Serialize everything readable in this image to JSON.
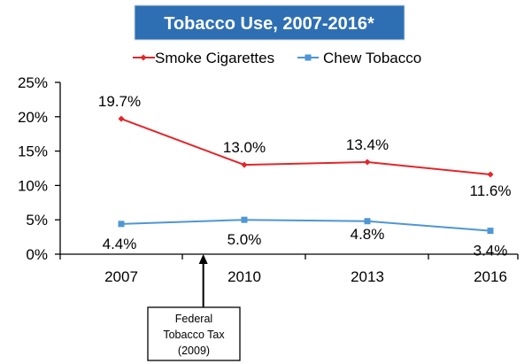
{
  "chart_data": {
    "type": "line",
    "title": "Tobacco Use, 2007-2016*",
    "categories": [
      "2007",
      "2010",
      "2013",
      "2016"
    ],
    "series": [
      {
        "name": "Smoke Cigarettes",
        "color": "#e3262a",
        "marker": "diamond",
        "values": [
          19.7,
          13.0,
          13.4,
          11.6
        ],
        "labels": [
          "19.7%",
          "13.0%",
          "13.4%",
          "11.6%"
        ]
      },
      {
        "name": "Chew Tobacco",
        "color": "#4f96d4",
        "marker": "square",
        "values": [
          4.4,
          5.0,
          4.8,
          3.4
        ],
        "labels": [
          "4.4%",
          "5.0%",
          "4.8%",
          "3.4%"
        ]
      }
    ],
    "y_ticks": [
      "0%",
      "5%",
      "10%",
      "15%",
      "20%",
      "25%"
    ],
    "ylim": [
      0,
      25
    ],
    "grid": false,
    "legend_position": "top",
    "annotation": {
      "lines": [
        "Federal",
        "Tobacco Tax",
        "(2009)"
      ],
      "points_to": "2009"
    }
  },
  "colors": {
    "title_banner": "#2e6fb3"
  }
}
